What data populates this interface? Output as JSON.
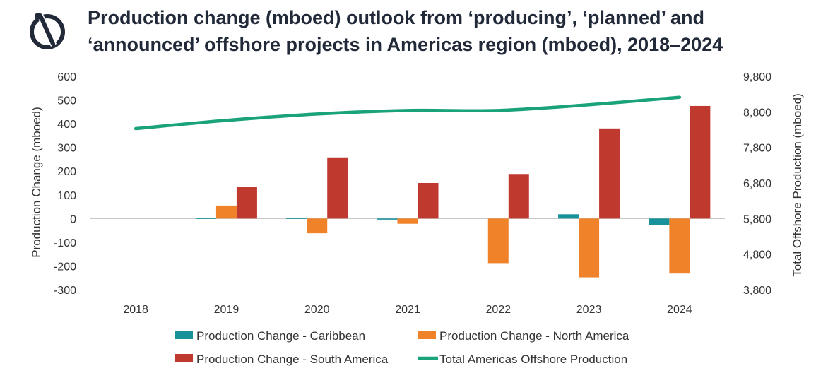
{
  "title": "Production change (mboed) outlook from ‘producing’, ‘planned’ and ‘announced’ offshore projects in Americas region (mboed), 2018–2024",
  "logo_icon": "brand-logo-icon",
  "colors": {
    "caribbean": "#17919a",
    "north_america": "#f0832a",
    "south_america": "#c0392f",
    "total": "#1aa37a",
    "title": "#222a3a",
    "axis": "#bfbfbf"
  },
  "chart_data": {
    "type": "bar",
    "categories": [
      "2018",
      "2019",
      "2020",
      "2021",
      "2022",
      "2023",
      "2024"
    ],
    "ylabel": "Production Change (mboed)",
    "y2label": "Total Offshore  Production (mboed)",
    "ylim": [
      -300,
      600
    ],
    "y2lim": [
      3800,
      9800
    ],
    "yticks": [
      "600",
      "500",
      "400",
      "300",
      "200",
      "100",
      "0",
      "-100",
      "-200",
      "-300"
    ],
    "y2ticks": [
      "9,800",
      "8,800",
      "7,800",
      "6,800",
      "5,800",
      "4,800",
      "3,800"
    ],
    "grid": false,
    "legend_position": "bottom",
    "series": [
      {
        "name": "Production Change - Caribbean",
        "kind": "bar",
        "axis": "left",
        "values": [
          0,
          3,
          3,
          -3,
          0,
          18,
          -28
        ]
      },
      {
        "name": "Production Change -  North America",
        "kind": "bar",
        "axis": "left",
        "values": [
          0,
          55,
          -62,
          -22,
          -188,
          -248,
          -232
        ]
      },
      {
        "name": "Production Change - South America",
        "kind": "bar",
        "axis": "left",
        "values": [
          0,
          135,
          258,
          150,
          188,
          380,
          475
        ]
      },
      {
        "name": "Total Americas Offshore Production",
        "kind": "line",
        "axis": "right",
        "values": [
          8330,
          8560,
          8740,
          8840,
          8840,
          9000,
          9210
        ]
      }
    ]
  }
}
